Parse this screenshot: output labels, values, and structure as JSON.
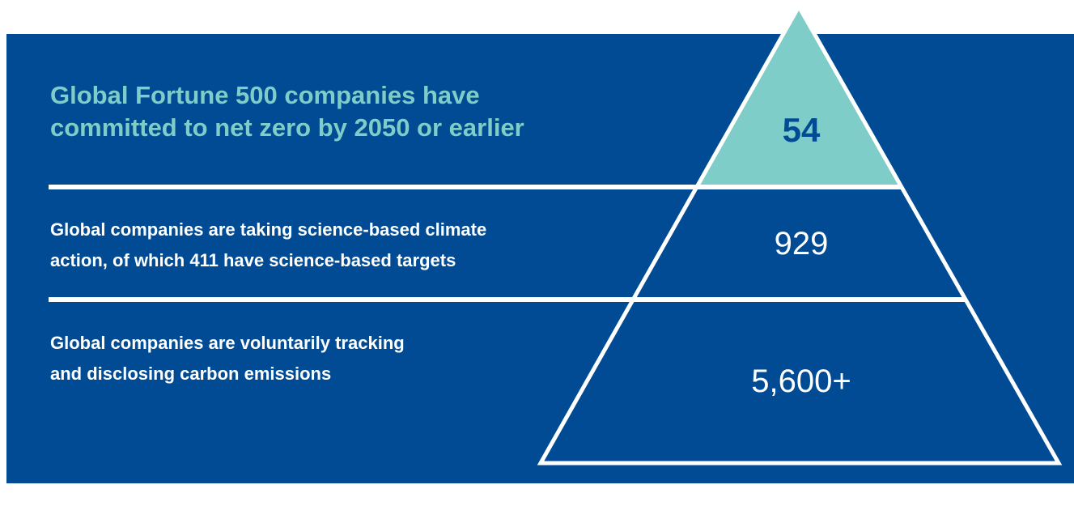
{
  "tiers": [
    {
      "lines": [
        "Global Fortune 500 companies have",
        "committed to net zero by 2050 or earlier"
      ],
      "figure": "54"
    },
    {
      "lines": [
        "Global companies are taking science-based climate",
        "action, of which 411 have science-based targets"
      ],
      "figure": "929"
    },
    {
      "lines": [
        "Global companies are voluntarily tracking",
        "and disclosing carbon emissions"
      ],
      "figure": "5,600+"
    }
  ]
}
